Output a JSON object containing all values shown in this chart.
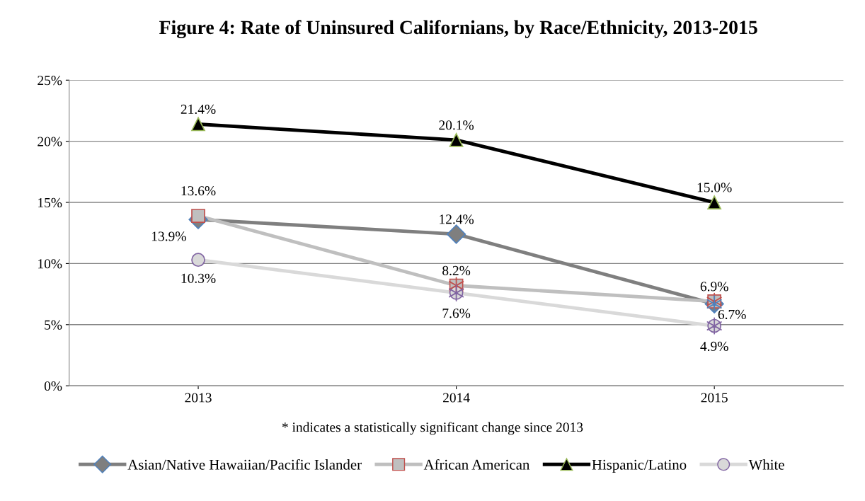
{
  "chart_data": {
    "type": "line",
    "title": "Figure 4: Rate of Uninsured Californians, by Race/Ethnicity, 2013-2015",
    "categories": [
      "2013",
      "2014",
      "2015"
    ],
    "series": [
      {
        "name": "Asian/Native Hawaiian/Pacific Islander",
        "color": "#7f7f7f",
        "marker": "diamond",
        "values": [
          13.6,
          12.4,
          6.7
        ],
        "value_labels": [
          "13.6%",
          "12.4%",
          "6.7%"
        ]
      },
      {
        "name": "African American",
        "color": "#bfbfbf",
        "marker": "square",
        "values": [
          13.9,
          8.2,
          6.9
        ],
        "value_labels": [
          "13.9%",
          "8.2%",
          "6.9%"
        ]
      },
      {
        "name": "Hispanic/Latino",
        "color": "#000000",
        "marker": "triangle",
        "values": [
          21.4,
          20.1,
          15.0
        ],
        "value_labels": [
          "21.4%",
          "20.1%",
          "15.0%"
        ]
      },
      {
        "name": "White",
        "color": "#d9d9d9",
        "marker": "circle",
        "values": [
          10.3,
          7.6,
          4.9
        ],
        "value_labels": [
          "10.3%",
          "7.6%",
          "4.9%"
        ]
      },
      {
        "type": "scatter",
        "color": "#c0504d",
        "marker": "cross",
        "values": [
          null,
          8.2,
          6.9
        ]
      },
      {
        "type": "scatter",
        "color": "#8064a2",
        "values": [
          null,
          7.6,
          4.9
        ]
      },
      {
        "type": "scatter",
        "color": "#4f81bd",
        "marker": "cross",
        "values": [
          null,
          null,
          6.7
        ]
      }
    ],
    "ylim": [
      0,
      25
    ],
    "yticks": [
      {
        "value": 0,
        "label": "0%"
      },
      {
        "value": 5,
        "label": "5%"
      },
      {
        "value": 10,
        "label": "10%"
      },
      {
        "value": 15,
        "label": "15%"
      },
      {
        "value": 20,
        "label": "20%"
      },
      {
        "value": 25,
        "label": "25%"
      }
    ],
    "grid": "y",
    "legend": "bottom",
    "annotations": [
      "* indicates a statistically significant change since 2013"
    ]
  }
}
